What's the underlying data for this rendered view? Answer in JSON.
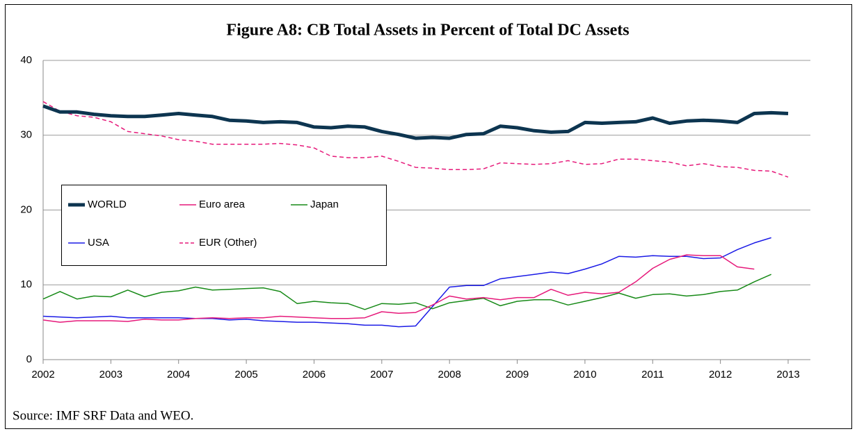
{
  "chart_data": {
    "type": "line",
    "title": "Figure A8: CB Total Assets in Percent of Total DC Assets",
    "source": "Source: IMF SRF Data and WEO.",
    "x": [
      2002,
      2002.25,
      2002.5,
      2002.75,
      2003,
      2003.25,
      2003.5,
      2003.75,
      2004,
      2004.25,
      2004.5,
      2004.75,
      2005,
      2005.25,
      2005.5,
      2005.75,
      2006,
      2006.25,
      2006.5,
      2006.75,
      2007,
      2007.25,
      2007.5,
      2007.75,
      2008,
      2008.25,
      2008.5,
      2008.75,
      2009,
      2009.25,
      2009.5,
      2009.75,
      2010,
      2010.25,
      2010.5,
      2010.75,
      2011,
      2011.25,
      2011.5,
      2011.75,
      2012,
      2012.25,
      2012.5,
      2012.75,
      2013
    ],
    "xlim": [
      2002,
      2013
    ],
    "xticks": [
      2002,
      2003,
      2004,
      2005,
      2006,
      2007,
      2008,
      2009,
      2010,
      2011,
      2012,
      2013
    ],
    "ylim": [
      0,
      40
    ],
    "yticks": [
      0,
      10,
      20,
      30,
      40
    ],
    "grid": true,
    "series": [
      {
        "name": "WORLD",
        "color": "#0d3550",
        "width": 5,
        "dash": false,
        "values": [
          33.9,
          33.1,
          33.1,
          32.8,
          32.6,
          32.5,
          32.5,
          32.7,
          32.9,
          32.7,
          32.5,
          32.0,
          31.9,
          31.7,
          31.8,
          31.7,
          31.1,
          31.0,
          31.2,
          31.1,
          30.5,
          30.1,
          29.6,
          29.7,
          29.6,
          30.1,
          30.2,
          31.2,
          31.0,
          30.6,
          30.4,
          30.5,
          31.7,
          31.6,
          31.7,
          31.8,
          32.3,
          31.6,
          31.9,
          32.0,
          31.9,
          31.7,
          32.9,
          33.0,
          32.9
        ]
      },
      {
        "name": "Euro area",
        "color": "#e6197a",
        "width": 1.5,
        "dash": false,
        "values": [
          5.3,
          5.0,
          5.2,
          5.2,
          5.2,
          5.1,
          5.4,
          5.3,
          5.3,
          5.5,
          5.6,
          5.5,
          5.6,
          5.6,
          5.8,
          5.7,
          5.6,
          5.5,
          5.5,
          5.6,
          6.4,
          6.2,
          6.3,
          7.3,
          8.5,
          8.1,
          8.3,
          8.0,
          8.3,
          8.3,
          9.4,
          8.6,
          9.0,
          8.8,
          9.0,
          10.4,
          12.2,
          13.4,
          14.0,
          13.9,
          13.9,
          12.4,
          12.1,
          null,
          null
        ]
      },
      {
        "name": "Japan",
        "color": "#178a17",
        "width": 1.5,
        "dash": false,
        "values": [
          8.1,
          9.1,
          8.1,
          8.5,
          8.4,
          9.3,
          8.4,
          9.0,
          9.2,
          9.7,
          9.3,
          9.4,
          9.5,
          9.6,
          9.1,
          7.5,
          7.8,
          7.6,
          7.5,
          6.7,
          7.5,
          7.4,
          7.6,
          6.8,
          7.6,
          7.9,
          8.2,
          7.2,
          7.8,
          8.0,
          8.0,
          7.3,
          7.8,
          8.3,
          8.9,
          8.2,
          8.7,
          8.8,
          8.5,
          8.7,
          9.1,
          9.3,
          10.4,
          11.4,
          null
        ]
      },
      {
        "name": "USA",
        "color": "#1a1ae6",
        "width": 1.5,
        "dash": false,
        "values": [
          5.8,
          5.7,
          5.6,
          5.7,
          5.8,
          5.6,
          5.6,
          5.6,
          5.6,
          5.5,
          5.5,
          5.3,
          5.4,
          5.2,
          5.1,
          5.0,
          5.0,
          4.9,
          4.8,
          4.6,
          4.6,
          4.4,
          4.5,
          7.1,
          9.7,
          9.9,
          9.9,
          10.8,
          11.1,
          11.4,
          11.7,
          11.5,
          12.1,
          12.8,
          13.8,
          13.7,
          13.9,
          13.8,
          13.8,
          13.5,
          13.6,
          14.7,
          15.6,
          16.3,
          null
        ]
      },
      {
        "name": "EUR (Other)",
        "color": "#e6197a",
        "width": 1.5,
        "dash": true,
        "values": [
          34.5,
          33.2,
          32.6,
          32.4,
          31.8,
          30.5,
          30.2,
          29.9,
          29.4,
          29.2,
          28.8,
          28.8,
          28.8,
          28.8,
          28.9,
          28.7,
          28.3,
          27.2,
          27.0,
          27.0,
          27.2,
          26.5,
          25.7,
          25.6,
          25.4,
          25.4,
          25.5,
          26.3,
          26.2,
          26.1,
          26.2,
          26.6,
          26.1,
          26.2,
          26.8,
          26.8,
          26.6,
          26.4,
          25.9,
          26.2,
          25.8,
          25.7,
          25.3,
          25.2,
          24.4
        ]
      }
    ]
  }
}
